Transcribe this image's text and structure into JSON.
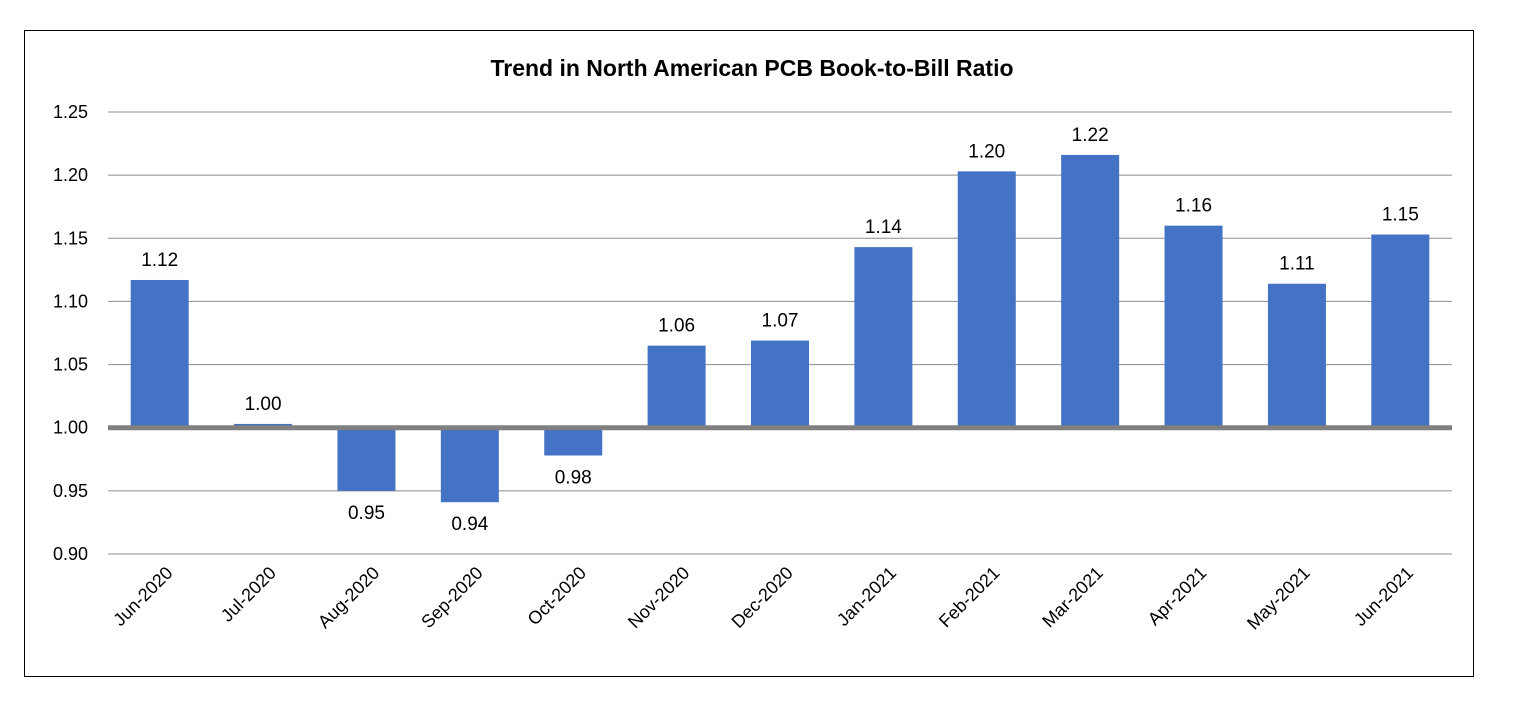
{
  "chart_data": {
    "type": "bar",
    "title": "Trend in North American PCB Book-to-Bill Ratio",
    "xlabel": "",
    "ylabel": "",
    "baseline": 1.0,
    "ylim": [
      0.9,
      1.25
    ],
    "yticks": [
      "0.90",
      "0.95",
      "1.00",
      "1.05",
      "1.10",
      "1.15",
      "1.20",
      "1.25"
    ],
    "grid": true,
    "categories": [
      "Jun-2020",
      "Jul-2020",
      "Aug-2020",
      "Sep-2020",
      "Oct-2020",
      "Nov-2020",
      "Dec-2020",
      "Jan-2021",
      "Feb-2021",
      "Mar-2021",
      "Apr-2021",
      "May-2021",
      "Jun-2021"
    ],
    "values": [
      1.117,
      1.003,
      0.95,
      0.941,
      0.978,
      1.065,
      1.069,
      1.143,
      1.203,
      1.216,
      1.16,
      1.114,
      1.153
    ],
    "labels": [
      "1.12",
      "1.00",
      "0.95",
      "0.94",
      "0.98",
      "1.06",
      "1.07",
      "1.14",
      "1.20",
      "1.22",
      "1.16",
      "1.11",
      "1.15"
    ],
    "bar_color": "#4472c4",
    "baseline_color": "#808080",
    "grid_color": "#8c8c8c"
  }
}
